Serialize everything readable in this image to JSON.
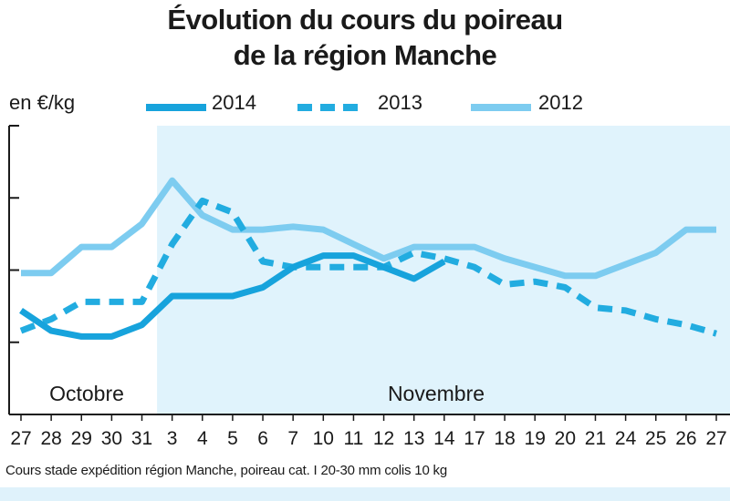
{
  "chart_data": {
    "type": "line",
    "title": "Évolution du cours du poireau de la région Manche",
    "title_lines": [
      "Évolution du cours du poireau",
      "de la région Manche"
    ],
    "ylabel": "en €/kg",
    "categories": [
      "27",
      "28",
      "29",
      "30",
      "31",
      "3",
      "4",
      "5",
      "6",
      "7",
      "10",
      "11",
      "12",
      "13",
      "14",
      "17",
      "18",
      "19",
      "20",
      "21",
      "24",
      "25",
      "26",
      "27"
    ],
    "month_labels": [
      {
        "label": "Octobre",
        "from_index": 0,
        "to_index": 4
      },
      {
        "label": "Novembre",
        "from_index": 5,
        "to_index": 23
      }
    ],
    "y_ticks": 4,
    "y_ticks_labeled": false,
    "ylim": [
      0,
      1
    ],
    "series": [
      {
        "name": "2014",
        "style": "solid",
        "color": "#17a3dc",
        "values": [
          0.36,
          0.29,
          0.27,
          0.27,
          0.31,
          0.41,
          0.41,
          0.41,
          0.44,
          0.51,
          0.55,
          0.55,
          0.51,
          0.47,
          0.53,
          null,
          null,
          null,
          null,
          null,
          null,
          null,
          null,
          null
        ]
      },
      {
        "name": "2013",
        "style": "dashed",
        "color": "#22ace0",
        "values": [
          0.29,
          0.33,
          0.39,
          0.39,
          0.39,
          0.59,
          0.74,
          0.7,
          0.53,
          0.51,
          0.51,
          0.51,
          0.51,
          0.56,
          0.54,
          0.51,
          0.45,
          0.46,
          0.44,
          0.37,
          0.36,
          0.33,
          0.31,
          0.28
        ]
      },
      {
        "name": "2012",
        "style": "solid",
        "color": "#7dccf0",
        "values": [
          0.49,
          0.49,
          0.58,
          0.58,
          0.66,
          0.81,
          0.69,
          0.64,
          0.64,
          0.65,
          0.64,
          0.59,
          0.54,
          0.58,
          0.58,
          0.58,
          0.54,
          0.51,
          0.48,
          0.48,
          0.52,
          0.56,
          0.64,
          0.64
        ]
      }
    ],
    "shaded_region": {
      "from_index": 5,
      "to_index": 23,
      "color": "#e0f3fc"
    },
    "grid": false,
    "legend_position": "top"
  },
  "footnote": "Cours stade expédition région Manche, poireau cat. I 20-30 mm colis 10 kg"
}
